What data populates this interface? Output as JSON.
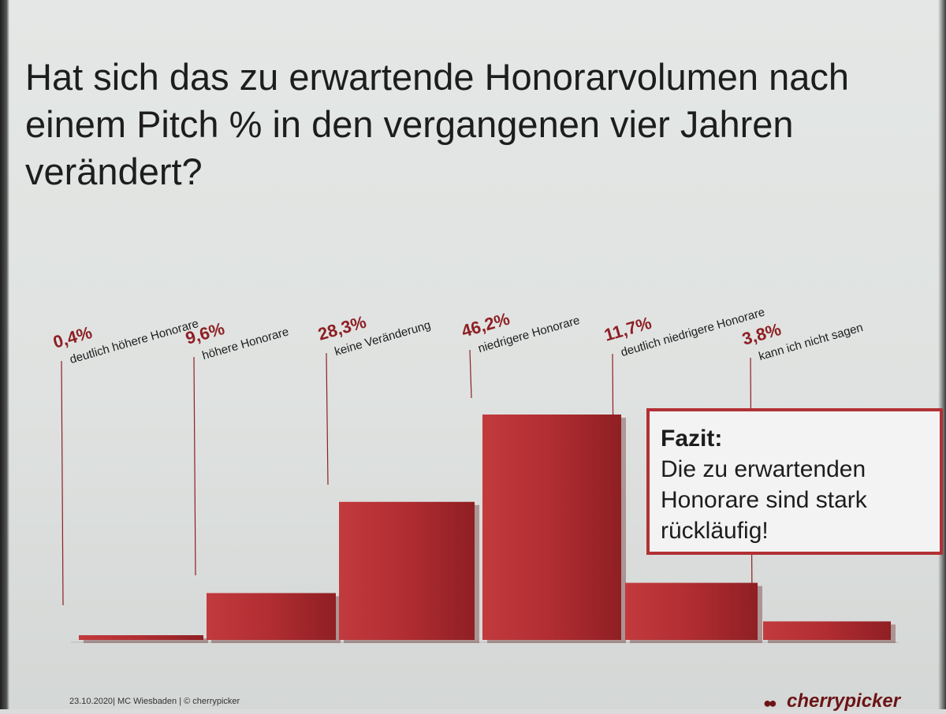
{
  "title": "Hat sich das zu erwartende Honorarvolumen nach einem Pitch % in den vergangenen vier Jahren verändert?",
  "chart_data": {
    "type": "bar",
    "categories": [
      "deutlich höhere Honorare",
      "höhere Honorare",
      "keine Veränderung",
      "niedrigere Honorare",
      "deutlich niedrigere Honorare",
      "kann ich nicht sagen"
    ],
    "values": [
      0.4,
      9.6,
      28.3,
      46.2,
      11.7,
      3.8
    ],
    "value_labels": [
      "0,4%",
      "9,6%",
      "28,3%",
      "46,2%",
      "11,7%",
      "3,8%"
    ],
    "ylim": [
      0,
      46.2
    ],
    "bar_color": "#b22d31",
    "label_color": "#8e1f24",
    "grid": false
  },
  "fazit": {
    "title": "Fazit:",
    "text": "Die zu erwartenden Honorare sind stark rückläufig!"
  },
  "footer": {
    "left": "23.10.2020| MC Wiesbaden | © cherrypicker"
  },
  "logo": {
    "text": "cherrypicker",
    "brand_color": "#6b1416"
  }
}
